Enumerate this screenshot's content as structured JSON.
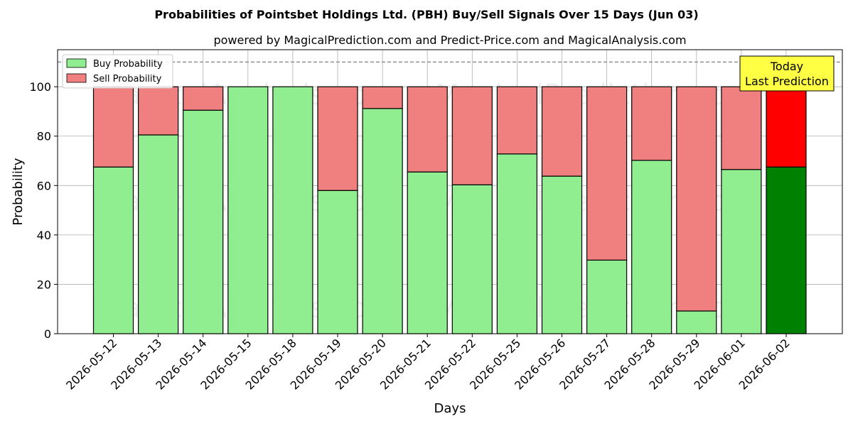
{
  "chart_data": {
    "type": "bar",
    "stacked": true,
    "title": "Probabilities of Pointsbet Holdings Ltd. (PBH) Buy/Sell Signals Over 15 Days (Jun 03)",
    "subtitle": "powered by MagicalPrediction.com and Predict-Price.com and MagicalAnalysis.com",
    "xlabel": "Days",
    "ylabel": "Probability",
    "ylim": [
      0,
      115
    ],
    "yticks": [
      0,
      20,
      40,
      60,
      80,
      100
    ],
    "reference_line": 110,
    "grid": true,
    "legend_position": "top-left",
    "categories": [
      "2026-05-12",
      "2026-05-13",
      "2026-05-14",
      "2026-05-15",
      "2026-05-18",
      "2026-05-19",
      "2026-05-20",
      "2026-05-21",
      "2026-05-22",
      "2026-05-25",
      "2026-05-26",
      "2026-05-27",
      "2026-05-28",
      "2026-05-29",
      "2026-06-01",
      "2026-06-02"
    ],
    "series": [
      {
        "name": "Buy Probability",
        "values": [
          67.5,
          80.5,
          90.5,
          100,
          100,
          58,
          91.2,
          65.5,
          60.3,
          72.8,
          63.8,
          29.8,
          70.2,
          9.2,
          66.5,
          67.5
        ],
        "color": "#90ee90",
        "highlight_color": "#008000"
      },
      {
        "name": "Sell Probability",
        "values": [
          32.5,
          19.5,
          9.5,
          0,
          0,
          42,
          8.8,
          34.5,
          39.7,
          27.2,
          36.2,
          70.2,
          29.8,
          90.8,
          33.5,
          32.5
        ],
        "color": "#f08080",
        "highlight_color": "#ff0000"
      }
    ],
    "highlight_index": 15,
    "annotation": {
      "lines": [
        "Today",
        "Last Prediction"
      ],
      "bg_color": "#ffff44"
    },
    "watermarks": [
      "MagicalAnalysis.com",
      "MagicalPrediction.com"
    ]
  }
}
